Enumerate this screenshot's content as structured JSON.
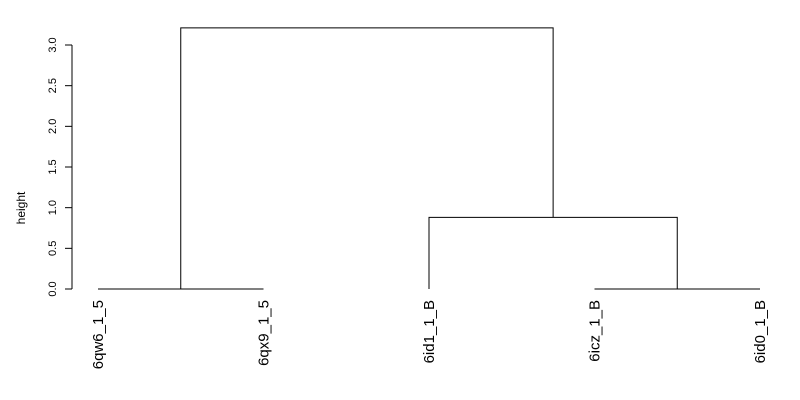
{
  "chart_data": {
    "type": "dendrogram",
    "ylabel": "height",
    "ylim": [
      0,
      3.2
    ],
    "yticks": [
      0.0,
      0.5,
      1.0,
      1.5,
      2.0,
      2.5,
      3.0
    ],
    "ytick_labels": [
      "0.0",
      "0.5",
      "1.0",
      "1.5",
      "2.0",
      "2.5",
      "3.0"
    ],
    "leaves": [
      "6qw6_1_5",
      "6qx9_1_5",
      "6id1_1_B",
      "6icz_1_B",
      "6id0_1_B"
    ],
    "merges": [
      {
        "left": "6qw6_1_5",
        "right": "6qx9_1_5",
        "height": 0.0
      },
      {
        "left": "6icz_1_B",
        "right": "6id0_1_B",
        "height": 0.0
      },
      {
        "left": "6id1_1_B",
        "right": "cluster(6icz_1_B,6id0_1_B)",
        "height": 0.88
      },
      {
        "left": "cluster(6qw6_1_5,6qx9_1_5)",
        "right": "cluster(6id1_1_B,6icz_1_B,6id0_1_B)",
        "height": 3.21
      }
    ]
  }
}
